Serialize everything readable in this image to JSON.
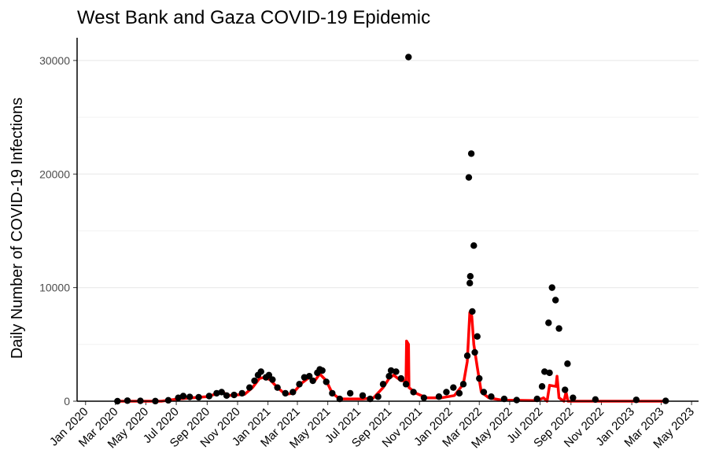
{
  "chart_data": {
    "type": "scatter",
    "title": "West Bank and Gaza COVID-19 Epidemic",
    "xlabel": "",
    "ylabel": "Daily Number of COVID-19 Infections",
    "xlim": [
      "2019-12-15",
      "2023-05-15"
    ],
    "ylim": [
      0,
      32000
    ],
    "y_ticks": [
      0,
      10000,
      20000,
      30000
    ],
    "x_ticks": [
      {
        "date": "2020-01-01",
        "label": "Jan 2020"
      },
      {
        "date": "2020-03-01",
        "label": "Mar 2020"
      },
      {
        "date": "2020-05-01",
        "label": "May 2020"
      },
      {
        "date": "2020-07-01",
        "label": "Jul 2020"
      },
      {
        "date": "2020-09-01",
        "label": "Sep 2020"
      },
      {
        "date": "2020-11-01",
        "label": "Nov 2020"
      },
      {
        "date": "2021-01-01",
        "label": "Jan 2021"
      },
      {
        "date": "2021-03-01",
        "label": "Mar 2021"
      },
      {
        "date": "2021-05-01",
        "label": "May 2021"
      },
      {
        "date": "2021-07-01",
        "label": "Jul 2021"
      },
      {
        "date": "2021-09-01",
        "label": "Sep 2021"
      },
      {
        "date": "2021-11-01",
        "label": "Nov 2021"
      },
      {
        "date": "2022-01-01",
        "label": "Jan 2022"
      },
      {
        "date": "2022-03-01",
        "label": "Mar 2022"
      },
      {
        "date": "2022-05-01",
        "label": "May 2022"
      },
      {
        "date": "2022-07-01",
        "label": "Jul 2022"
      },
      {
        "date": "2022-09-01",
        "label": "Sep 2022"
      },
      {
        "date": "2022-11-01",
        "label": "Nov 2022"
      },
      {
        "date": "2023-01-01",
        "label": "Jan 2023"
      },
      {
        "date": "2023-03-01",
        "label": "Mar 2023"
      },
      {
        "date": "2023-05-01",
        "label": "May 2023"
      }
    ],
    "grid": "horizontal",
    "series": [
      {
        "kind": "points",
        "color": "#000000",
        "points": [
          {
            "x": "2020-03-05",
            "y": 0
          },
          {
            "x": "2020-03-25",
            "y": 50
          },
          {
            "x": "2020-04-20",
            "y": 30
          },
          {
            "x": "2020-05-20",
            "y": 10
          },
          {
            "x": "2020-06-15",
            "y": 80
          },
          {
            "x": "2020-07-05",
            "y": 300
          },
          {
            "x": "2020-07-15",
            "y": 450
          },
          {
            "x": "2020-07-28",
            "y": 380
          },
          {
            "x": "2020-08-15",
            "y": 350
          },
          {
            "x": "2020-09-05",
            "y": 450
          },
          {
            "x": "2020-09-20",
            "y": 700
          },
          {
            "x": "2020-09-30",
            "y": 800
          },
          {
            "x": "2020-10-10",
            "y": 500
          },
          {
            "x": "2020-10-25",
            "y": 550
          },
          {
            "x": "2020-11-10",
            "y": 700
          },
          {
            "x": "2020-11-25",
            "y": 1200
          },
          {
            "x": "2020-12-05",
            "y": 1800
          },
          {
            "x": "2020-12-12",
            "y": 2300
          },
          {
            "x": "2020-12-18",
            "y": 2600
          },
          {
            "x": "2020-12-28",
            "y": 2100
          },
          {
            "x": "2021-01-03",
            "y": 2300
          },
          {
            "x": "2021-01-10",
            "y": 1900
          },
          {
            "x": "2021-01-20",
            "y": 1200
          },
          {
            "x": "2021-02-05",
            "y": 700
          },
          {
            "x": "2021-02-20",
            "y": 800
          },
          {
            "x": "2021-03-05",
            "y": 1500
          },
          {
            "x": "2021-03-15",
            "y": 2100
          },
          {
            "x": "2021-03-25",
            "y": 2200
          },
          {
            "x": "2021-04-01",
            "y": 1800
          },
          {
            "x": "2021-04-10",
            "y": 2500
          },
          {
            "x": "2021-04-15",
            "y": 2800
          },
          {
            "x": "2021-04-20",
            "y": 2700
          },
          {
            "x": "2021-04-28",
            "y": 1700
          },
          {
            "x": "2021-05-10",
            "y": 700
          },
          {
            "x": "2021-05-25",
            "y": 200
          },
          {
            "x": "2021-06-15",
            "y": 700
          },
          {
            "x": "2021-07-10",
            "y": 500
          },
          {
            "x": "2021-07-25",
            "y": 200
          },
          {
            "x": "2021-08-10",
            "y": 400
          },
          {
            "x": "2021-08-20",
            "y": 1500
          },
          {
            "x": "2021-09-01",
            "y": 2200
          },
          {
            "x": "2021-09-05",
            "y": 2700
          },
          {
            "x": "2021-09-15",
            "y": 2600
          },
          {
            "x": "2021-09-25",
            "y": 2000
          },
          {
            "x": "2021-10-05",
            "y": 1500
          },
          {
            "x": "2021-10-10",
            "y": 30300
          },
          {
            "x": "2021-10-20",
            "y": 800
          },
          {
            "x": "2021-11-10",
            "y": 300
          },
          {
            "x": "2021-12-10",
            "y": 400
          },
          {
            "x": "2021-12-25",
            "y": 800
          },
          {
            "x": "2022-01-08",
            "y": 1200
          },
          {
            "x": "2022-01-20",
            "y": 700
          },
          {
            "x": "2022-01-28",
            "y": 1500
          },
          {
            "x": "2022-02-05",
            "y": 4000
          },
          {
            "x": "2022-02-08",
            "y": 19700
          },
          {
            "x": "2022-02-10",
            "y": 10400
          },
          {
            "x": "2022-02-11",
            "y": 11000
          },
          {
            "x": "2022-02-13",
            "y": 21800
          },
          {
            "x": "2022-02-15",
            "y": 7900
          },
          {
            "x": "2022-02-18",
            "y": 13700
          },
          {
            "x": "2022-02-20",
            "y": 4300
          },
          {
            "x": "2022-02-25",
            "y": 5700
          },
          {
            "x": "2022-03-01",
            "y": 2000
          },
          {
            "x": "2022-03-10",
            "y": 800
          },
          {
            "x": "2022-03-25",
            "y": 400
          },
          {
            "x": "2022-04-20",
            "y": 200
          },
          {
            "x": "2022-05-15",
            "y": 100
          },
          {
            "x": "2022-06-25",
            "y": 200
          },
          {
            "x": "2022-07-05",
            "y": 1300
          },
          {
            "x": "2022-07-10",
            "y": 2600
          },
          {
            "x": "2022-07-18",
            "y": 6900
          },
          {
            "x": "2022-07-20",
            "y": 2500
          },
          {
            "x": "2022-07-25",
            "y": 10000
          },
          {
            "x": "2022-08-01",
            "y": 8900
          },
          {
            "x": "2022-08-08",
            "y": 6400
          },
          {
            "x": "2022-08-20",
            "y": 1000
          },
          {
            "x": "2022-08-25",
            "y": 3300
          },
          {
            "x": "2022-09-05",
            "y": 300
          },
          {
            "x": "2022-10-20",
            "y": 150
          },
          {
            "x": "2023-01-10",
            "y": 120
          },
          {
            "x": "2023-03-10",
            "y": 30
          }
        ]
      },
      {
        "kind": "line",
        "color": "#ff0000",
        "points": [
          {
            "x": "2020-03-05",
            "y": 0
          },
          {
            "x": "2020-06-01",
            "y": 0
          },
          {
            "x": "2020-07-05",
            "y": 200
          },
          {
            "x": "2020-08-01",
            "y": 300
          },
          {
            "x": "2020-09-01",
            "y": 400
          },
          {
            "x": "2020-10-01",
            "y": 800
          },
          {
            "x": "2020-10-15",
            "y": 500
          },
          {
            "x": "2020-11-15",
            "y": 600
          },
          {
            "x": "2020-12-01",
            "y": 1200
          },
          {
            "x": "2020-12-15",
            "y": 2000
          },
          {
            "x": "2020-12-25",
            "y": 2100
          },
          {
            "x": "2021-01-05",
            "y": 1900
          },
          {
            "x": "2021-01-20",
            "y": 1200
          },
          {
            "x": "2021-02-05",
            "y": 600
          },
          {
            "x": "2021-02-20",
            "y": 700
          },
          {
            "x": "2021-03-10",
            "y": 1600
          },
          {
            "x": "2021-03-25",
            "y": 2100
          },
          {
            "x": "2021-04-05",
            "y": 1800
          },
          {
            "x": "2021-04-15",
            "y": 2400
          },
          {
            "x": "2021-04-28",
            "y": 1800
          },
          {
            "x": "2021-05-10",
            "y": 700
          },
          {
            "x": "2021-05-25",
            "y": 200
          },
          {
            "x": "2021-07-10",
            "y": 200
          },
          {
            "x": "2021-08-01",
            "y": 300
          },
          {
            "x": "2021-08-20",
            "y": 1200
          },
          {
            "x": "2021-09-01",
            "y": 2000
          },
          {
            "x": "2021-09-10",
            "y": 2300
          },
          {
            "x": "2021-09-25",
            "y": 1800
          },
          {
            "x": "2021-10-05",
            "y": 1800
          },
          {
            "x": "2021-10-06",
            "y": 5300
          },
          {
            "x": "2021-10-10",
            "y": 5000
          },
          {
            "x": "2021-10-11",
            "y": 1200
          },
          {
            "x": "2021-10-25",
            "y": 700
          },
          {
            "x": "2021-11-15",
            "y": 300
          },
          {
            "x": "2021-12-15",
            "y": 300
          },
          {
            "x": "2022-01-10",
            "y": 500
          },
          {
            "x": "2022-01-28",
            "y": 1500
          },
          {
            "x": "2022-02-05",
            "y": 3500
          },
          {
            "x": "2022-02-10",
            "y": 7800
          },
          {
            "x": "2022-02-14",
            "y": 7500
          },
          {
            "x": "2022-02-18",
            "y": 5000
          },
          {
            "x": "2022-02-25",
            "y": 3000
          },
          {
            "x": "2022-03-05",
            "y": 800
          },
          {
            "x": "2022-03-20",
            "y": 300
          },
          {
            "x": "2022-04-15",
            "y": 100
          },
          {
            "x": "2022-06-25",
            "y": 50
          },
          {
            "x": "2022-07-08",
            "y": 300
          },
          {
            "x": "2022-07-15",
            "y": 0
          },
          {
            "x": "2022-07-20",
            "y": 1400
          },
          {
            "x": "2022-08-02",
            "y": 1300
          },
          {
            "x": "2022-08-04",
            "y": 2200
          },
          {
            "x": "2022-08-08",
            "y": 300
          },
          {
            "x": "2022-08-18",
            "y": 0
          },
          {
            "x": "2022-08-22",
            "y": 800
          },
          {
            "x": "2022-08-26",
            "y": 0
          },
          {
            "x": "2023-03-10",
            "y": 0
          }
        ]
      }
    ]
  }
}
